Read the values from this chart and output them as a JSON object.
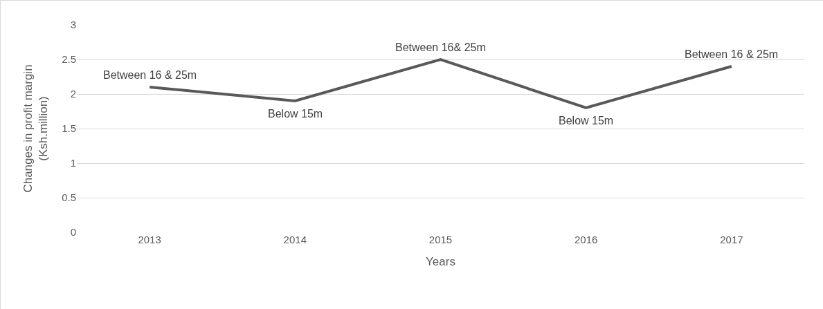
{
  "chart_data": {
    "type": "line",
    "xlabel": "Years",
    "ylabel": "Changes in profit margin (Ksh.million)",
    "categories": [
      "2013",
      "2014",
      "2015",
      "2016",
      "2017"
    ],
    "series": [
      {
        "color": "#595959",
        "values": [
          2.1,
          1.9,
          2.5,
          1.8,
          2.4
        ],
        "value_labels": [
          "Between 16 & 25m",
          "Below 15m",
          "Between 16& 25m",
          "Below 15m",
          "Between 16 & 25m"
        ]
      }
    ],
    "ylim": [
      0,
      3
    ],
    "yticks": [
      0,
      0.5,
      1,
      1.5,
      2,
      2.5,
      3
    ],
    "grid": "y",
    "marker": "none",
    "line_style": "solid"
  }
}
